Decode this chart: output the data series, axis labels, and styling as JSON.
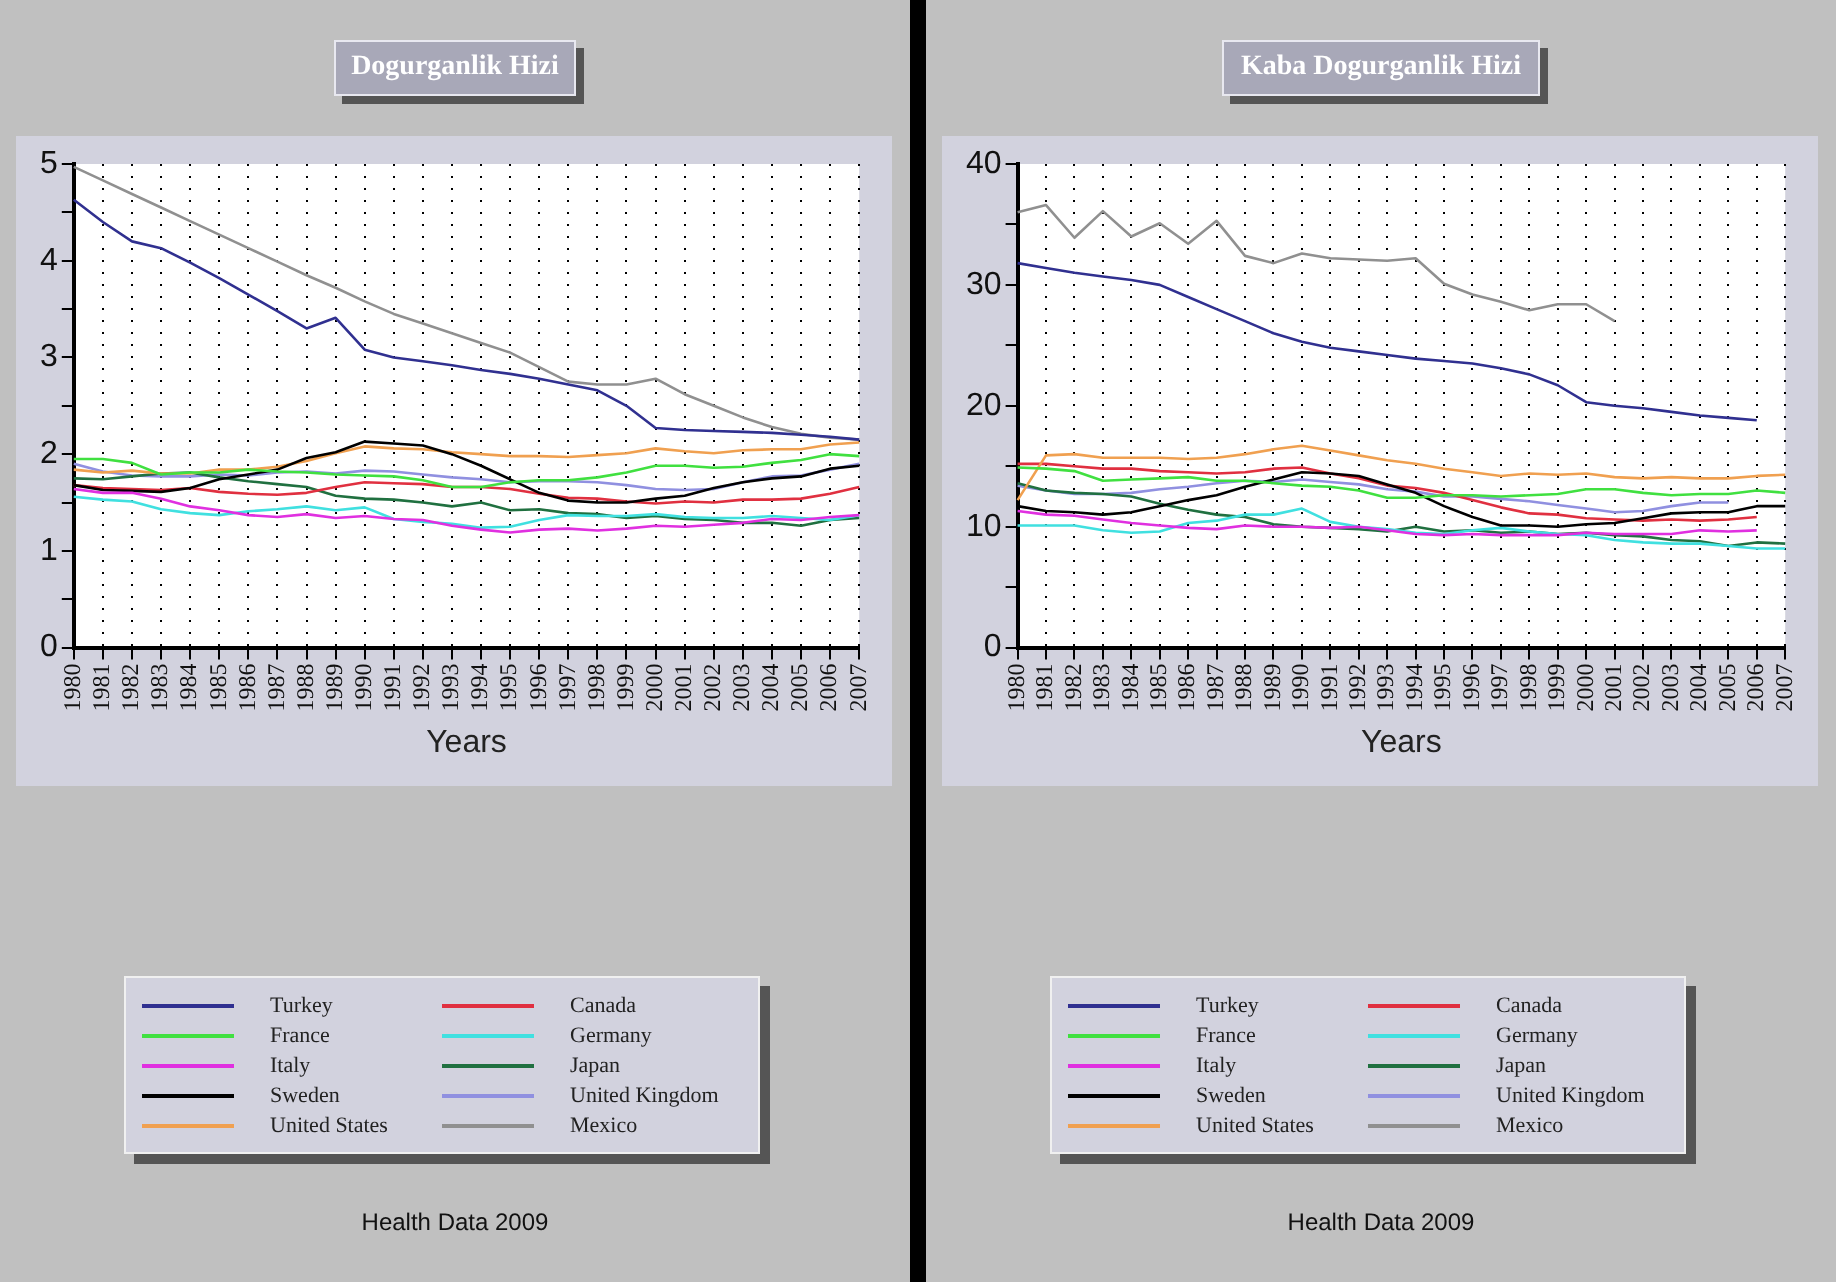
{
  "chart_data": [
    {
      "type": "line",
      "title": "Dogurganlik Hizi",
      "xlabel": "Years",
      "annotations": [
        "Health Data 2009"
      ],
      "legend": "bottom",
      "grid": "x",
      "categories": [
        "1980",
        "1981",
        "1982",
        "1983",
        "1984",
        "1985",
        "1986",
        "1987",
        "1988",
        "1989",
        "1990",
        "1991",
        "1992",
        "1993",
        "1994",
        "1995",
        "1996",
        "1997",
        "1998",
        "1999",
        "2000",
        "2001",
        "2002",
        "2003",
        "2004",
        "2005",
        "2006",
        "2007"
      ],
      "ylim": [
        0,
        5
      ],
      "yticks": [
        0,
        {
          "value": 0.5,
          "label": null
        },
        1,
        {
          "value": 1.5,
          "label": null
        },
        2,
        {
          "value": 2.5,
          "label": null
        },
        3,
        {
          "value": 3.5,
          "label": null
        },
        4,
        {
          "value": 4.5,
          "label": null
        },
        5
      ],
      "series": [
        {
          "name": "Turkey",
          "color": "#303090",
          "values": [
            4.63,
            4.4,
            4.2,
            4.13,
            3.98,
            3.82,
            3.65,
            3.48,
            3.3,
            3.41,
            3.08,
            3.0,
            2.96,
            2.92,
            2.87,
            2.83,
            2.78,
            2.72,
            2.66,
            2.5,
            2.27,
            2.25,
            2.24,
            2.23,
            2.22,
            2.2,
            2.18,
            2.15
          ]
        },
        {
          "name": "France",
          "color": "#40e040",
          "values": [
            1.95,
            1.95,
            1.91,
            1.79,
            1.81,
            1.81,
            1.84,
            1.82,
            1.81,
            1.79,
            1.78,
            1.77,
            1.73,
            1.66,
            1.66,
            1.71,
            1.73,
            1.73,
            1.76,
            1.81,
            1.88,
            1.88,
            1.86,
            1.87,
            1.91,
            1.94,
            2.0,
            1.98
          ]
        },
        {
          "name": "Italy",
          "color": "#e030e0",
          "values": [
            1.64,
            1.6,
            1.6,
            1.54,
            1.46,
            1.42,
            1.37,
            1.35,
            1.38,
            1.34,
            1.36,
            1.33,
            1.32,
            1.26,
            1.22,
            1.19,
            1.22,
            1.23,
            1.21,
            1.23,
            1.26,
            1.25,
            1.27,
            1.29,
            1.33,
            1.32,
            1.35,
            1.37
          ]
        },
        {
          "name": "Sweden",
          "color": "#000000",
          "values": [
            1.68,
            1.63,
            1.62,
            1.61,
            1.65,
            1.74,
            1.79,
            1.84,
            1.96,
            2.02,
            2.13,
            2.11,
            2.09,
            2.0,
            1.88,
            1.74,
            1.6,
            1.52,
            1.5,
            1.5,
            1.54,
            1.57,
            1.65,
            1.71,
            1.75,
            1.77,
            1.85,
            1.88
          ]
        },
        {
          "name": "United States",
          "color": "#f0a050",
          "values": [
            1.84,
            1.81,
            1.83,
            1.8,
            1.8,
            1.84,
            1.84,
            1.87,
            1.93,
            2.01,
            2.08,
            2.06,
            2.05,
            2.02,
            2.0,
            1.98,
            1.98,
            1.97,
            1.99,
            2.01,
            2.06,
            2.03,
            2.01,
            2.04,
            2.05,
            2.05,
            2.1,
            2.12
          ]
        },
        {
          "name": "Canada",
          "color": "#e03040",
          "values": [
            1.68,
            1.65,
            1.64,
            1.63,
            1.65,
            1.61,
            1.59,
            1.58,
            1.6,
            1.66,
            1.71,
            1.7,
            1.69,
            1.66,
            1.66,
            1.64,
            1.59,
            1.55,
            1.54,
            1.51,
            1.49,
            1.51,
            1.5,
            1.53,
            1.53,
            1.54,
            1.59,
            1.66
          ]
        },
        {
          "name": "Germany",
          "color": "#40e0e0",
          "values": [
            1.56,
            1.53,
            1.51,
            1.43,
            1.39,
            1.37,
            1.41,
            1.43,
            1.46,
            1.42,
            1.45,
            1.33,
            1.3,
            1.28,
            1.24,
            1.25,
            1.32,
            1.37,
            1.36,
            1.36,
            1.38,
            1.35,
            1.34,
            1.34,
            1.36,
            1.34,
            1.32,
            1.37
          ]
        },
        {
          "name": "Japan",
          "color": "#207040",
          "values": [
            1.75,
            1.74,
            1.77,
            1.8,
            1.81,
            1.76,
            1.72,
            1.69,
            1.66,
            1.57,
            1.54,
            1.53,
            1.5,
            1.46,
            1.5,
            1.42,
            1.43,
            1.39,
            1.38,
            1.34,
            1.36,
            1.33,
            1.32,
            1.29,
            1.29,
            1.26,
            1.32,
            1.34
          ]
        },
        {
          "name": "United Kingdom",
          "color": "#9090e0",
          "values": [
            1.9,
            1.82,
            1.78,
            1.77,
            1.77,
            1.79,
            1.78,
            1.81,
            1.82,
            1.8,
            1.83,
            1.82,
            1.79,
            1.76,
            1.74,
            1.71,
            1.72,
            1.72,
            1.71,
            1.68,
            1.64,
            1.63,
            1.64,
            1.71,
            1.77,
            1.78,
            1.84,
            1.9
          ]
        },
        {
          "name": "Mexico",
          "color": "#909090",
          "values": [
            4.97,
            4.83,
            4.69,
            4.55,
            4.41,
            4.27,
            4.13,
            3.99,
            3.85,
            3.72,
            3.58,
            3.45,
            3.35,
            3.25,
            3.15,
            3.05,
            2.9,
            2.75,
            2.72,
            2.72,
            2.78,
            2.62,
            2.5,
            2.38,
            2.28,
            2.21,
            2.17,
            2.15
          ]
        }
      ]
    },
    {
      "type": "line",
      "title": "Kaba Dogurganlik Hizi",
      "xlabel": "Years",
      "annotations": [
        "Health Data 2009"
      ],
      "legend": "bottom",
      "grid": "x",
      "categories": [
        "1980",
        "1981",
        "1982",
        "1983",
        "1984",
        "1985",
        "1986",
        "1987",
        "1988",
        "1989",
        "1990",
        "1991",
        "1992",
        "1993",
        "1994",
        "1995",
        "1996",
        "1997",
        "1998",
        "1999",
        "2000",
        "2001",
        "2002",
        "2003",
        "2004",
        "2005",
        "2006",
        "2007"
      ],
      "ylim": [
        0,
        40
      ],
      "yticks": [
        0,
        {
          "value": 5,
          "label": null
        },
        10,
        {
          "value": 15,
          "label": null
        },
        20,
        {
          "value": 25,
          "label": null
        },
        30,
        {
          "value": 35,
          "label": null
        },
        40
      ],
      "series": [
        {
          "name": "Turkey",
          "color": "#303090",
          "values": [
            31.8,
            31.4,
            31.0,
            30.7,
            30.4,
            30.0,
            29.0,
            28.0,
            27.0,
            26.0,
            25.3,
            24.8,
            24.5,
            24.2,
            23.9,
            23.7,
            23.5,
            23.1,
            22.6,
            21.7,
            20.3,
            20.0,
            19.8,
            19.5,
            19.2,
            19.0,
            18.8,
            null
          ]
        },
        {
          "name": "France",
          "color": "#40e040",
          "values": [
            14.9,
            14.8,
            14.6,
            13.8,
            13.9,
            14.0,
            14.1,
            13.8,
            13.8,
            13.6,
            13.4,
            13.3,
            13.0,
            12.4,
            12.4,
            12.6,
            12.6,
            12.5,
            12.6,
            12.7,
            13.1,
            13.1,
            12.8,
            12.6,
            12.7,
            12.7,
            13.0,
            12.8
          ]
        },
        {
          "name": "Italy",
          "color": "#e030e0",
          "values": [
            11.3,
            11.0,
            10.9,
            10.6,
            10.3,
            10.1,
            9.9,
            9.8,
            10.1,
            10.0,
            10.0,
            9.9,
            10.0,
            9.7,
            9.4,
            9.3,
            9.4,
            9.3,
            9.3,
            9.3,
            9.5,
            9.4,
            9.4,
            9.4,
            9.7,
            9.6,
            9.7,
            null
          ]
        },
        {
          "name": "Sweden",
          "color": "#000000",
          "values": [
            11.7,
            11.3,
            11.2,
            11.0,
            11.2,
            11.7,
            12.2,
            12.6,
            13.3,
            13.9,
            14.5,
            14.4,
            14.2,
            13.5,
            12.8,
            11.7,
            10.8,
            10.1,
            10.1,
            10.0,
            10.2,
            10.3,
            10.7,
            11.1,
            11.2,
            11.2,
            11.7,
            11.7
          ]
        },
        {
          "name": "United States",
          "color": "#f0a050",
          "values": [
            12.2,
            15.9,
            16.0,
            15.7,
            15.7,
            15.7,
            15.6,
            15.7,
            16.0,
            16.4,
            16.7,
            16.3,
            15.9,
            15.5,
            15.2,
            14.8,
            14.5,
            14.2,
            14.4,
            14.3,
            14.4,
            14.1,
            14.0,
            14.1,
            14.0,
            14.0,
            14.2,
            14.3
          ]
        },
        {
          "name": "Canada",
          "color": "#e03040",
          "values": [
            15.2,
            15.2,
            15.0,
            14.8,
            14.8,
            14.6,
            14.5,
            14.4,
            14.5,
            14.8,
            14.9,
            14.4,
            14.0,
            13.4,
            13.2,
            12.8,
            12.2,
            11.6,
            11.1,
            11.0,
            10.7,
            10.6,
            10.5,
            10.6,
            10.5,
            10.6,
            10.8,
            null
          ]
        },
        {
          "name": "Germany",
          "color": "#40e0e0",
          "values": [
            10.1,
            10.1,
            10.1,
            9.7,
            9.5,
            9.6,
            10.3,
            10.5,
            11.0,
            11.0,
            11.5,
            10.4,
            10.0,
            9.8,
            9.5,
            9.4,
            9.7,
            9.9,
            9.6,
            9.4,
            9.3,
            8.9,
            8.7,
            8.6,
            8.6,
            8.4,
            8.2,
            8.2
          ]
        },
        {
          "name": "Japan",
          "color": "#207040",
          "values": [
            13.6,
            13.0,
            12.8,
            12.7,
            12.5,
            11.9,
            11.4,
            11.0,
            10.8,
            10.2,
            10.0,
            9.9,
            9.8,
            9.6,
            10.0,
            9.6,
            9.7,
            9.5,
            9.6,
            9.4,
            9.5,
            9.3,
            9.2,
            8.9,
            8.8,
            8.4,
            8.7,
            8.6
          ]
        },
        {
          "name": "United Kingdom",
          "color": "#9090e0",
          "values": [
            13.4,
            13.0,
            12.7,
            12.7,
            12.8,
            13.1,
            13.3,
            13.6,
            13.8,
            13.7,
            13.9,
            13.7,
            13.5,
            13.1,
            12.9,
            12.5,
            12.5,
            12.3,
            12.1,
            11.8,
            11.5,
            11.2,
            11.3,
            11.7,
            12.0,
            12.0,
            null,
            null
          ]
        },
        {
          "name": "Mexico",
          "color": "#909090",
          "values": [
            36.0,
            36.6,
            33.9,
            36.1,
            34.0,
            35.1,
            33.4,
            35.3,
            32.4,
            31.8,
            32.6,
            32.2,
            32.1,
            32.0,
            32.2,
            30.1,
            29.2,
            28.6,
            27.9,
            28.4,
            28.4,
            27.0,
            null,
            null,
            null,
            null,
            null,
            null
          ]
        }
      ]
    }
  ]
}
